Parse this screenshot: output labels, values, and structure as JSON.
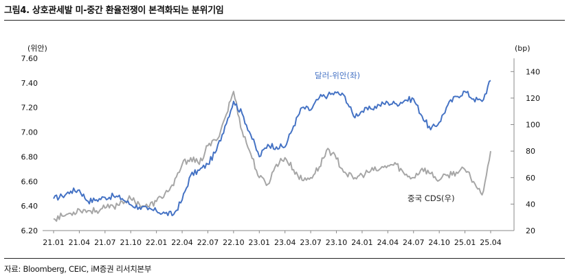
{
  "figure": {
    "title": "그림4.  상호관세발 미-중간 환율전쟁이 본격화되는 분위기임",
    "source": "자료: Bloomberg, CEIC, iM증권 리서치본부"
  },
  "chart_data": {
    "type": "line",
    "left_unit": "(위안)",
    "right_unit": "(bp)",
    "x_ticks": [
      "21.01",
      "21.04",
      "21.07",
      "21.10",
      "22.01",
      "22.04",
      "22.07",
      "22.10",
      "23.01",
      "23.04",
      "23.07",
      "23.10",
      "24.01",
      "24.04",
      "24.07",
      "24.10",
      "25.01",
      "25.04"
    ],
    "left_axis": {
      "min": 6.2,
      "max": 7.6,
      "ticks": [
        "6.20",
        "6.40",
        "6.60",
        "6.80",
        "7.00",
        "7.20",
        "7.40",
        "7.60"
      ]
    },
    "right_axis": {
      "min": 20,
      "max": 150,
      "ticks": [
        "20",
        "40",
        "60",
        "80",
        "100",
        "120",
        "140"
      ]
    },
    "series": [
      {
        "name": "달러-위안(좌)",
        "axis": "left",
        "color": "#4472c4",
        "x": [
          "21.01",
          "21.02",
          "21.03",
          "21.04",
          "21.05",
          "21.06",
          "21.07",
          "21.08",
          "21.09",
          "21.10",
          "21.11",
          "21.12",
          "22.01",
          "22.02",
          "22.03",
          "22.04",
          "22.05",
          "22.06",
          "22.07",
          "22.08",
          "22.09",
          "22.10",
          "22.11",
          "22.12",
          "23.01",
          "23.02",
          "23.03",
          "23.04",
          "23.05",
          "23.06",
          "23.07",
          "23.08",
          "23.09",
          "23.10",
          "23.11",
          "23.12",
          "24.01",
          "24.02",
          "24.03",
          "24.04",
          "24.05",
          "24.06",
          "24.07",
          "24.08",
          "24.09",
          "24.10",
          "24.11",
          "24.12",
          "25.01",
          "25.02",
          "25.03",
          "25.04"
        ],
        "values": [
          6.46,
          6.48,
          6.52,
          6.53,
          6.44,
          6.45,
          6.47,
          6.48,
          6.46,
          6.41,
          6.39,
          6.37,
          6.36,
          6.34,
          6.33,
          6.45,
          6.65,
          6.69,
          6.74,
          6.85,
          7.05,
          7.25,
          7.15,
          6.98,
          6.8,
          6.9,
          6.88,
          6.88,
          7.05,
          7.2,
          7.18,
          7.28,
          7.3,
          7.32,
          7.29,
          7.13,
          7.17,
          7.19,
          7.22,
          7.24,
          7.23,
          7.26,
          7.27,
          7.13,
          7.02,
          7.08,
          7.22,
          7.29,
          7.33,
          7.27,
          7.25,
          7.42
        ]
      },
      {
        "name": "중국 CDS(우)",
        "axis": "right",
        "color": "#a6a6a6",
        "x": [
          "21.01",
          "21.02",
          "21.03",
          "21.04",
          "21.05",
          "21.06",
          "21.07",
          "21.08",
          "21.09",
          "21.10",
          "21.11",
          "21.12",
          "22.01",
          "22.02",
          "22.03",
          "22.04",
          "22.05",
          "22.06",
          "22.07",
          "22.08",
          "22.09",
          "22.10",
          "22.11",
          "22.12",
          "23.01",
          "23.02",
          "23.03",
          "23.04",
          "23.05",
          "23.06",
          "23.07",
          "23.08",
          "23.09",
          "23.10",
          "23.11",
          "23.12",
          "24.01",
          "24.02",
          "24.03",
          "24.04",
          "24.05",
          "24.06",
          "24.07",
          "24.08",
          "24.09",
          "24.10",
          "24.11",
          "24.12",
          "25.01",
          "25.02",
          "25.03",
          "25.04"
        ],
        "values": [
          29,
          31,
          33,
          36,
          35,
          35,
          37,
          38,
          42,
          44,
          40,
          38,
          42,
          48,
          54,
          70,
          75,
          70,
          84,
          88,
          105,
          125,
          95,
          78,
          60,
          55,
          70,
          75,
          66,
          58,
          60,
          68,
          82,
          74,
          64,
          59,
          62,
          65,
          66,
          69,
          70,
          62,
          60,
          67,
          63,
          58,
          62,
          64,
          66,
          57,
          47,
          80
        ]
      }
    ]
  }
}
